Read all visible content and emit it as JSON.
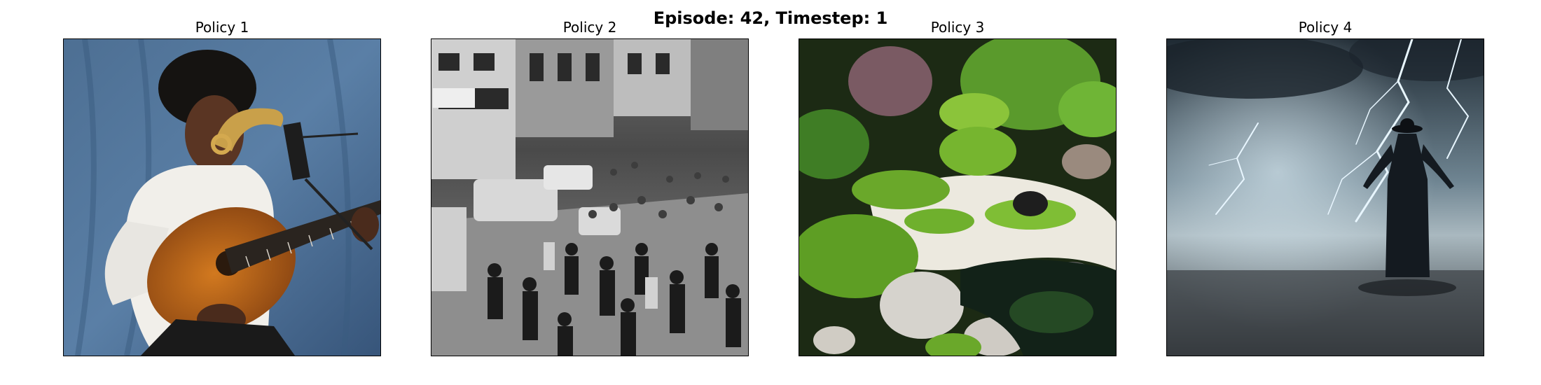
{
  "figure": {
    "suptitle": "Episode: 42, Timestep: 1",
    "panels": [
      {
        "title": "Policy 1",
        "image": "boy-playing-guitar-photo"
      },
      {
        "title": "Policy 2",
        "image": "crowded-street-bw-photo"
      },
      {
        "title": "Policy 3",
        "image": "japanese-garden-pond-photo"
      },
      {
        "title": "Policy 4",
        "image": "cloaked-figure-lightning-storm-photo"
      }
    ]
  }
}
